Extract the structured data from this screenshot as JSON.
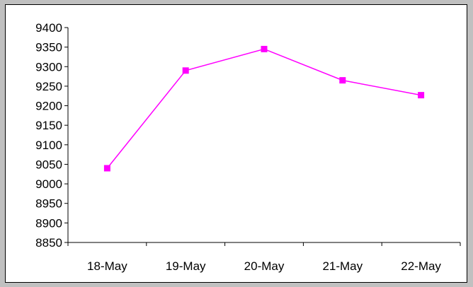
{
  "chart_data": {
    "type": "line",
    "title": "",
    "xlabel": "",
    "ylabel": "",
    "categories": [
      "18-May",
      "19-May",
      "20-May",
      "21-May",
      "22-May"
    ],
    "series": [
      {
        "values": [
          9040,
          9290,
          9345,
          9265,
          9227
        ],
        "color": "#ff00ff",
        "marker": "square"
      }
    ],
    "ylim": [
      8850,
      9400
    ],
    "yticks": [
      8850,
      8900,
      8950,
      9000,
      9050,
      9100,
      9150,
      9200,
      9250,
      9300,
      9350,
      9400
    ],
    "grid": false,
    "legend": "none"
  },
  "colors": {
    "background": "#c0c0c0",
    "plot_area": "#ffffff",
    "axis": "#000000",
    "series_line": "#ff00ff"
  }
}
